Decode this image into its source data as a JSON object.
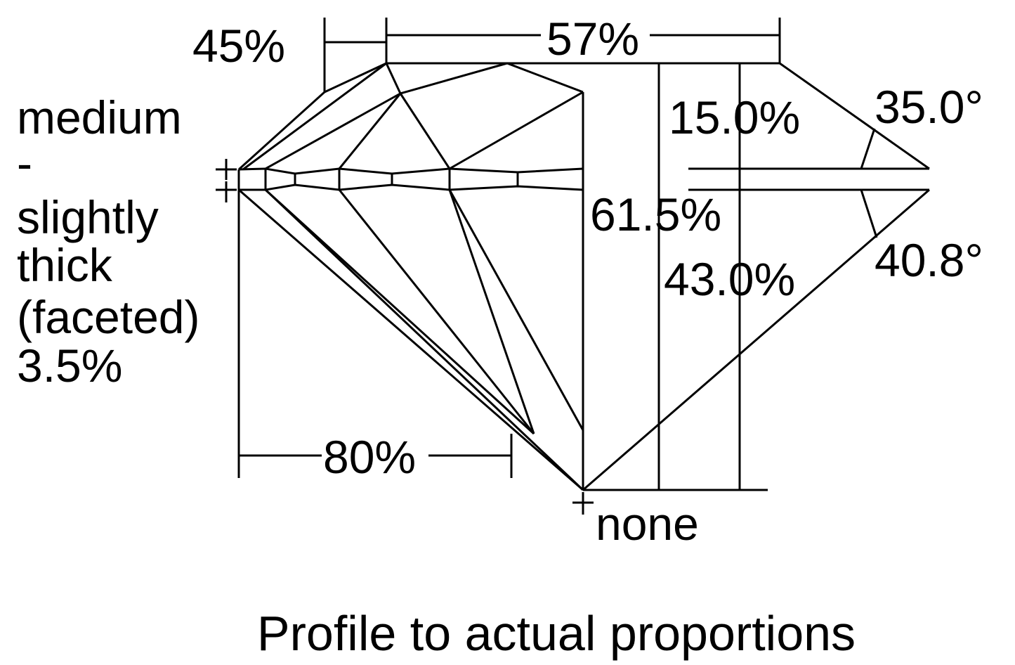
{
  "labels": {
    "star_length": "45%",
    "table": "57%",
    "crown_height": "15.0%",
    "crown_angle": "35.0°",
    "girdle": [
      "medium",
      "-",
      "slightly",
      "thick",
      "(faceted)",
      "3.5%"
    ],
    "total_depth": "61.5%",
    "pavilion_depth": "43.0%",
    "pavilion_angle": "40.8°",
    "lower_half_length": "80%",
    "culet": "none"
  },
  "caption": "Profile to actual proportions"
}
